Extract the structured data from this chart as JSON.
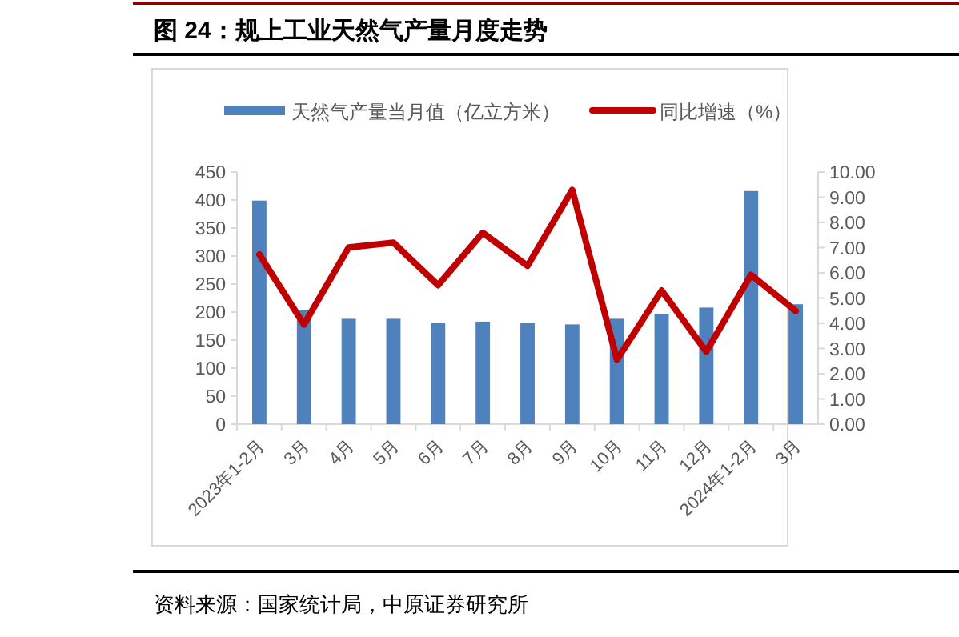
{
  "chart_data": {
    "type": "bar",
    "title": "图 24：规上工业天然气产量月度走势",
    "categories": [
      "2023年1-2月",
      "3月",
      "4月",
      "5月",
      "6月",
      "7月",
      "8月",
      "9月",
      "10月",
      "11月",
      "12月",
      "2024年1-2月",
      "3月"
    ],
    "series": [
      {
        "name": "天然气产量当月值（亿立方米）",
        "color": "#4f81bd",
        "values": [
          399,
          204,
          188,
          188,
          181,
          183,
          180,
          178,
          188,
          197,
          208,
          416,
          214
        ]
      },
      {
        "name": "同比增速（%）",
        "type": "line",
        "axis": "y2",
        "color": "#c00000",
        "values": [
          6.73,
          3.95,
          7.01,
          7.2,
          5.51,
          7.59,
          6.28,
          9.29,
          2.56,
          5.3,
          2.88,
          5.92,
          4.49
        ]
      }
    ],
    "ylim": [
      0,
      450
    ],
    "yticks": [
      0,
      50,
      100,
      150,
      200,
      250,
      300,
      350,
      400,
      450
    ],
    "y2lim": [
      0,
      10
    ],
    "y2ticks": [
      {
        "value": 0,
        "label": "0.00"
      },
      {
        "value": 1,
        "label": "1.00"
      },
      {
        "value": 2,
        "label": "2.00"
      },
      {
        "value": 3,
        "label": "3.00"
      },
      {
        "value": 4,
        "label": "4.00"
      },
      {
        "value": 5,
        "label": "5.00"
      },
      {
        "value": 6,
        "label": "6.00"
      },
      {
        "value": 7,
        "label": "7.00"
      },
      {
        "value": 8,
        "label": "8.00"
      },
      {
        "value": 9,
        "label": "9.00"
      },
      {
        "value": 10,
        "label": "10.00"
      }
    ],
    "legend": "top",
    "grid": false,
    "marker": "none",
    "annotations": [
      "资料来源：国家统计局，中原证券研究所"
    ]
  }
}
